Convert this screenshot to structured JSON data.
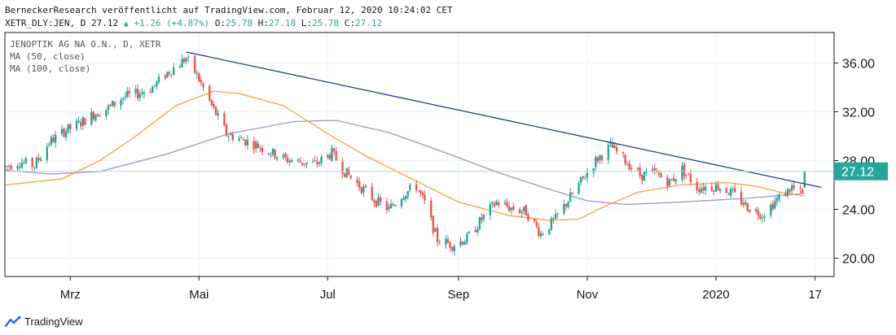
{
  "header": {
    "line1": "BerneckerResearch veröffentlicht auf TradingView.com, Februar 12, 2020 10:24:02 CET",
    "symbol": "XETR_DLY:JEN, D",
    "last": "27.12",
    "change": "+1.26 (+4.87%)",
    "o_label": "O:",
    "o_value": "25.78",
    "h_label": "H:",
    "h_value": "27.18",
    "l_label": "L:",
    "l_value": "25.78",
    "c_label": "C:",
    "c_value": "27.12"
  },
  "legend": {
    "instrument": "JENOPTIK AG NA O.N., D, XETR",
    "ma50": "MA (50, close)",
    "ma100": "MA (100, close)"
  },
  "price_label": "27.12",
  "footer": {
    "brand": "TradingView",
    "logo_icon": "tradingview-logo-icon"
  },
  "colors": {
    "up": "#26a69a",
    "down": "#ef5350",
    "ma50": "#ff9a3c",
    "ma100": "#9d8fd6",
    "trendline": "#1f3d8f",
    "price_line": "#a8ded8",
    "price_label_bg": "#26a69a",
    "grid": "#f0f3fa",
    "axis": "#131722"
  },
  "chart_data": {
    "type": "candlestick",
    "y_ticks": [
      "36.00",
      "32.00",
      "28.00",
      "24.00",
      "20.00"
    ],
    "y_tick_values": [
      36,
      32,
      28,
      24,
      20
    ],
    "ylim": [
      18.5,
      38.5
    ],
    "x_ticks": [
      "Mrz",
      "Mai",
      "Jul",
      "Sep",
      "Nov",
      "2020",
      "17"
    ],
    "x_tick_dates": [
      "2019-03-01",
      "2019-05-01",
      "2019-07-01",
      "2019-09-01",
      "2019-11-01",
      "2020-01-01",
      "2020-02-17"
    ],
    "xlim": [
      "2019-01-29",
      "2020-02-26"
    ],
    "grid": true,
    "last_price": 27.12,
    "trendline": {
      "from": {
        "date": "2019-04-25",
        "price": 36.9
      },
      "to": {
        "date": "2020-02-20",
        "price": 25.8
      }
    },
    "price_path": [
      [
        "2019-01-29",
        27.5
      ],
      [
        "2019-02-05",
        27.9
      ],
      [
        "2019-02-12",
        27.6
      ],
      [
        "2019-02-19",
        29.5
      ],
      [
        "2019-02-26",
        30.4
      ],
      [
        "2019-03-05",
        31.0
      ],
      [
        "2019-03-12",
        31.8
      ],
      [
        "2019-03-19",
        32.3
      ],
      [
        "2019-03-26",
        33.2
      ],
      [
        "2019-04-02",
        33.5
      ],
      [
        "2019-04-09",
        34.0
      ],
      [
        "2019-04-16",
        35.2
      ],
      [
        "2019-04-25",
        36.4
      ],
      [
        "2019-04-30",
        35.0
      ],
      [
        "2019-05-07",
        32.5
      ],
      [
        "2019-05-14",
        30.2
      ],
      [
        "2019-05-28",
        29.3
      ],
      [
        "2019-06-11",
        28.1
      ],
      [
        "2019-06-25",
        27.7
      ],
      [
        "2019-07-03",
        28.6
      ],
      [
        "2019-07-09",
        27.1
      ],
      [
        "2019-07-23",
        24.8
      ],
      [
        "2019-07-30",
        24.0
      ],
      [
        "2019-08-06",
        25.3
      ],
      [
        "2019-08-12",
        25.9
      ],
      [
        "2019-08-16",
        24.5
      ],
      [
        "2019-08-22",
        21.5
      ],
      [
        "2019-08-29",
        21.1
      ],
      [
        "2019-09-05",
        21.6
      ],
      [
        "2019-09-12",
        23.2
      ],
      [
        "2019-09-19",
        24.6
      ],
      [
        "2019-09-26",
        24.1
      ],
      [
        "2019-10-03",
        23.8
      ],
      [
        "2019-10-10",
        22.0
      ],
      [
        "2019-10-17",
        23.2
      ],
      [
        "2019-10-22",
        24.5
      ],
      [
        "2019-10-28",
        26.0
      ],
      [
        "2019-11-05",
        28.0
      ],
      [
        "2019-11-12",
        29.2
      ],
      [
        "2019-11-19",
        28.0
      ],
      [
        "2019-11-26",
        26.8
      ],
      [
        "2019-12-03",
        27.0
      ],
      [
        "2019-12-10",
        26.2
      ],
      [
        "2019-12-16",
        27.3
      ],
      [
        "2019-12-23",
        25.8
      ],
      [
        "2020-01-02",
        25.9
      ],
      [
        "2020-01-09",
        25.3
      ],
      [
        "2020-01-16",
        24.2
      ],
      [
        "2020-01-23",
        23.6
      ],
      [
        "2020-01-30",
        24.8
      ],
      [
        "2020-02-06",
        25.8
      ],
      [
        "2020-02-11",
        25.2
      ],
      [
        "2020-02-12",
        27.1
      ]
    ],
    "ma50_path": [
      [
        "2019-01-29",
        26.0
      ],
      [
        "2019-02-25",
        26.5
      ],
      [
        "2019-03-15",
        28.0
      ],
      [
        "2019-04-01",
        30.0
      ],
      [
        "2019-04-20",
        32.5
      ],
      [
        "2019-05-08",
        33.7
      ],
      [
        "2019-05-20",
        33.5
      ],
      [
        "2019-06-10",
        32.5
      ],
      [
        "2019-07-01",
        30.2
      ],
      [
        "2019-07-20",
        28.3
      ],
      [
        "2019-08-10",
        26.5
      ],
      [
        "2019-09-01",
        24.6
      ],
      [
        "2019-09-25",
        23.5
      ],
      [
        "2019-10-14",
        23.1
      ],
      [
        "2019-10-28",
        23.2
      ],
      [
        "2019-11-10",
        24.3
      ],
      [
        "2019-11-25",
        25.4
      ],
      [
        "2019-12-15",
        26.0
      ],
      [
        "2020-01-06",
        26.2
      ],
      [
        "2020-01-20",
        25.9
      ],
      [
        "2020-02-03",
        25.3
      ],
      [
        "2020-02-12",
        25.1
      ]
    ],
    "ma100_path": [
      [
        "2019-01-29",
        27.2
      ],
      [
        "2019-02-20",
        26.9
      ],
      [
        "2019-03-15",
        27.1
      ],
      [
        "2019-04-15",
        28.5
      ],
      [
        "2019-05-15",
        30.2
      ],
      [
        "2019-06-15",
        31.2
      ],
      [
        "2019-07-05",
        31.3
      ],
      [
        "2019-07-30",
        30.3
      ],
      [
        "2019-08-25",
        28.7
      ],
      [
        "2019-09-20",
        27.0
      ],
      [
        "2019-10-15",
        25.6
      ],
      [
        "2019-11-01",
        24.7
      ],
      [
        "2019-11-20",
        24.4
      ],
      [
        "2019-12-15",
        24.6
      ],
      [
        "2020-01-15",
        24.9
      ],
      [
        "2020-02-12",
        25.3
      ]
    ]
  }
}
